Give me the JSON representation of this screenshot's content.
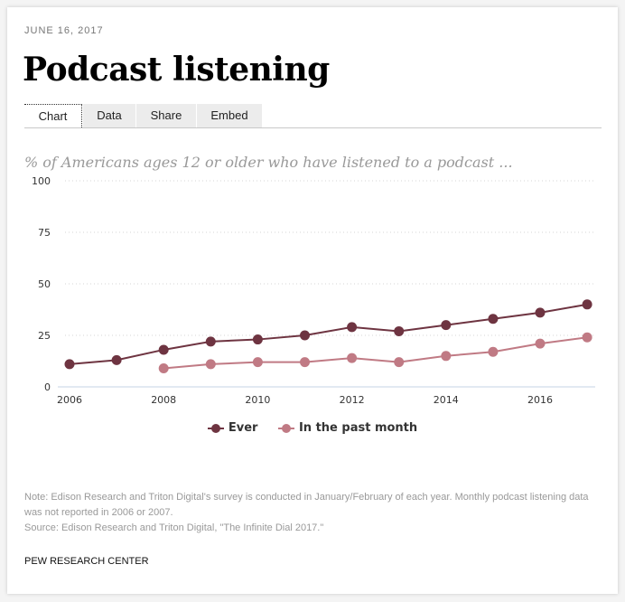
{
  "header": {
    "date": "JUNE 16, 2017",
    "title": "Podcast listening"
  },
  "tabs": [
    {
      "label": "Chart",
      "active": true
    },
    {
      "label": "Data",
      "active": false
    },
    {
      "label": "Share",
      "active": false
    },
    {
      "label": "Embed",
      "active": false
    }
  ],
  "chart": {
    "subtitle": "% of Americans ages 12 or older who have listened to a podcast ...",
    "legend": [
      {
        "label": "Ever",
        "color": "#6e3441"
      },
      {
        "label": "In the past month",
        "color": "#c07a84"
      }
    ]
  },
  "footer": {
    "note": "Note: Edison Research and Triton Digital's survey is conducted in January/February of each year. Monthly podcast listening data was not reported in 2006 or 2007.",
    "source": "Source: Edison Research and Triton Digital, \"The Infinite Dial 2017.\"",
    "credit": "PEW RESEARCH CENTER"
  },
  "chart_data": {
    "type": "line",
    "title": "Podcast listening",
    "subtitle": "% of Americans ages 12 or older who have listened to a podcast ...",
    "xlabel": "",
    "ylabel": "",
    "x": [
      2006,
      2007,
      2008,
      2009,
      2010,
      2011,
      2012,
      2013,
      2014,
      2015,
      2016,
      2017
    ],
    "x_ticks": [
      2006,
      2008,
      2010,
      2012,
      2014,
      2016
    ],
    "y_ticks": [
      0,
      25,
      50,
      75,
      100
    ],
    "ylim": [
      0,
      100
    ],
    "grid": "horizontal dotted",
    "legend_position": "bottom",
    "series": [
      {
        "name": "Ever",
        "color": "#6e3441",
        "values": [
          11,
          13,
          18,
          22,
          23,
          25,
          29,
          27,
          30,
          33,
          36,
          40
        ]
      },
      {
        "name": "In the past month",
        "color": "#c07a84",
        "values": [
          null,
          null,
          9,
          11,
          12,
          12,
          14,
          12,
          15,
          17,
          21,
          24
        ]
      }
    ]
  }
}
